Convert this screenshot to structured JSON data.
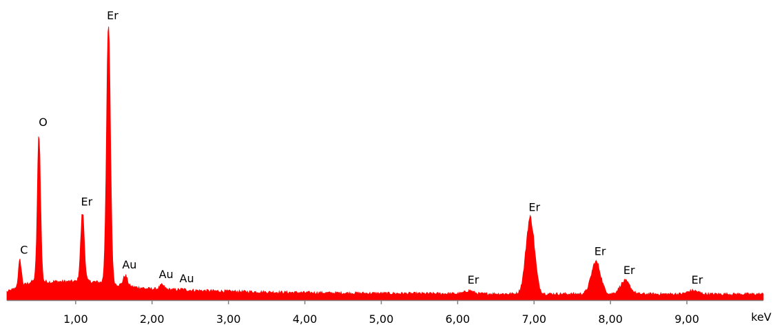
{
  "chart_data": {
    "type": "area",
    "xlabel": "keV",
    "xlim": [
      0.1,
      10.0
    ],
    "ylim": [
      0,
      100
    ],
    "grid": false,
    "series_color": "#ff0000",
    "axis_color": "#808080",
    "x_ticks": [
      {
        "value": 1.0,
        "label": "1,00"
      },
      {
        "value": 2.0,
        "label": "2,00"
      },
      {
        "value": 3.0,
        "label": "3,00"
      },
      {
        "value": 4.0,
        "label": "4,00"
      },
      {
        "value": 5.0,
        "label": "5,00"
      },
      {
        "value": 6.0,
        "label": "6,00"
      },
      {
        "value": 7.0,
        "label": "7,00"
      },
      {
        "value": 8.0,
        "label": "8,00"
      },
      {
        "value": 9.0,
        "label": "9,00"
      }
    ],
    "peaks": [
      {
        "element": "C",
        "x": 0.27,
        "y": 14.5
      },
      {
        "element": "O",
        "x": 0.52,
        "y": 61.0
      },
      {
        "element": "Er",
        "x": 1.09,
        "y": 32.0
      },
      {
        "element": "Er",
        "x": 1.43,
        "y": 100.0
      },
      {
        "element": "Au",
        "x": 1.65,
        "y": 9.0
      },
      {
        "element": "Au",
        "x": 2.13,
        "y": 5.5
      },
      {
        "element": "Au",
        "x": 2.4,
        "y": 4.0
      },
      {
        "element": "Er",
        "x": 6.15,
        "y": 3.5
      },
      {
        "element": "Er",
        "x": 6.95,
        "y": 30.0
      },
      {
        "element": "Er",
        "x": 7.81,
        "y": 14.0
      },
      {
        "element": "Er",
        "x": 8.19,
        "y": 7.0
      },
      {
        "element": "Er",
        "x": 9.08,
        "y": 3.5
      }
    ]
  }
}
